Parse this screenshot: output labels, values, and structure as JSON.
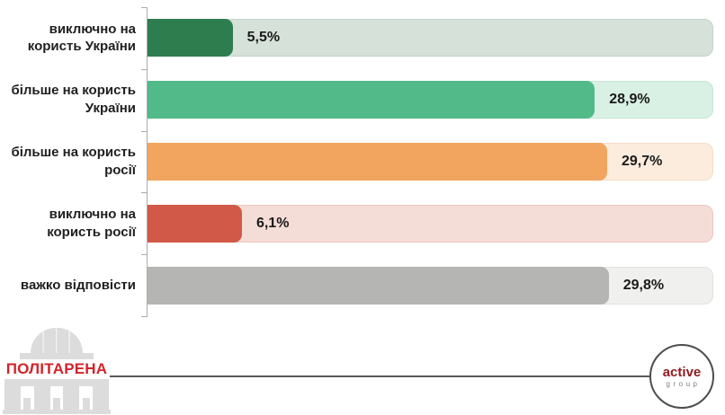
{
  "chart_data": {
    "type": "bar",
    "orientation": "horizontal",
    "title": "",
    "xlabel": "",
    "ylabel": "",
    "grid": false,
    "legend": false,
    "unit": "%",
    "decimal_separator": ",",
    "xlim": [
      0,
      36.5
    ],
    "categories": [
      "виключно на користь України",
      "більше на користь України",
      "більше на користь росії",
      "виключно на користь росії",
      "важко відповісти"
    ],
    "label_lines": [
      [
        "виключно на",
        "користь України"
      ],
      [
        "більше на користь",
        "України"
      ],
      [
        "більше на користь",
        "росії"
      ],
      [
        "виключно на",
        "користь росії"
      ],
      [
        "важко відповісти"
      ]
    ],
    "values": [
      5.5,
      28.9,
      29.7,
      6.1,
      29.8
    ],
    "value_labels": [
      "5,5%",
      "28,9%",
      "29,7%",
      "6,1%",
      "29,8%"
    ],
    "bar_colors": [
      "#2e7d4f",
      "#52ba88",
      "#f1a55f",
      "#d05a47",
      "#b5b5b4"
    ],
    "track_colors": [
      "#d5e1d9",
      "#d9f1e4",
      "#fcecdd",
      "#f5ddd7",
      "#f0f0ef"
    ],
    "track_border_colors": [
      "#c3d5ca",
      "#c5e7d7",
      "#f5dcc5",
      "#edc7bd",
      "#e1e1e0"
    ],
    "axis_color": "#ababab",
    "axis_tick_count": 6
  },
  "footer": {
    "politarena_logo_text": "ПОЛІТАРЕНА",
    "politarena_red": "#d2232a",
    "active_group_logo": {
      "line1": "active",
      "line2": "group"
    }
  }
}
